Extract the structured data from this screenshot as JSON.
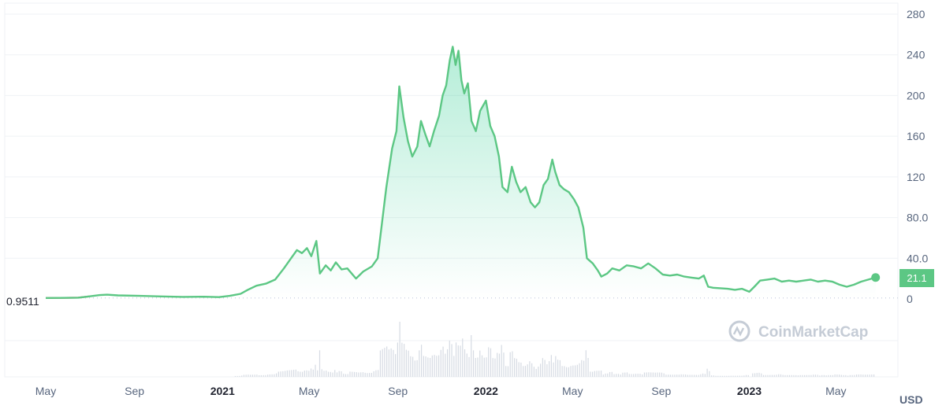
{
  "chart_data": {
    "type": "area",
    "y_ticks": [
      "280",
      "240",
      "200",
      "160",
      "120",
      "80.0",
      "40.0",
      "0"
    ],
    "ylim": [
      0,
      280
    ],
    "x_ticks": [
      {
        "label": "May",
        "bold": false,
        "day": 0
      },
      {
        "label": "Sep",
        "bold": false,
        "day": 123
      },
      {
        "label": "2021",
        "bold": true,
        "day": 245
      },
      {
        "label": "May",
        "bold": false,
        "day": 365
      },
      {
        "label": "Sep",
        "bold": false,
        "day": 488
      },
      {
        "label": "2022",
        "bold": true,
        "day": 610
      },
      {
        "label": "May",
        "bold": false,
        "day": 730
      },
      {
        "label": "Sep",
        "bold": false,
        "day": 853
      },
      {
        "label": "2023",
        "bold": true,
        "day": 975
      },
      {
        "label": "May",
        "bold": false,
        "day": 1095
      }
    ],
    "x_range_days": [
      0,
      1170
    ],
    "currency": "USD",
    "start_price_label": "0.9511",
    "current_price_label": "21.1",
    "watermark": "CoinMarketCap",
    "colors": {
      "up": "#16c784",
      "line": "#5cc784",
      "down": "#ea3943",
      "grid": "#eff2f5",
      "volume": "#d6dbe3"
    },
    "series": [
      {
        "values": [
          [
            0,
            0.95
          ],
          [
            20,
            1.0
          ],
          [
            45,
            1.2
          ],
          [
            60,
            2.5
          ],
          [
            75,
            3.8
          ],
          [
            85,
            4.2
          ],
          [
            100,
            3.5
          ],
          [
            130,
            3.0
          ],
          [
            160,
            2.5
          ],
          [
            190,
            2.0
          ],
          [
            220,
            2.2
          ],
          [
            240,
            1.8
          ],
          [
            255,
            3.0
          ],
          [
            270,
            5.0
          ],
          [
            280,
            9
          ],
          [
            292,
            13
          ],
          [
            305,
            15
          ],
          [
            318,
            19
          ],
          [
            330,
            30
          ],
          [
            340,
            40
          ],
          [
            348,
            48
          ],
          [
            355,
            45
          ],
          [
            362,
            50
          ],
          [
            368,
            42
          ],
          [
            375,
            57
          ],
          [
            380,
            25
          ],
          [
            388,
            33
          ],
          [
            395,
            28
          ],
          [
            402,
            36
          ],
          [
            410,
            29
          ],
          [
            418,
            30
          ],
          [
            430,
            20
          ],
          [
            440,
            27
          ],
          [
            452,
            32
          ],
          [
            460,
            40
          ],
          [
            466,
            75
          ],
          [
            472,
            110
          ],
          [
            480,
            148
          ],
          [
            486,
            165
          ],
          [
            490,
            209
          ],
          [
            496,
            178
          ],
          [
            502,
            155
          ],
          [
            508,
            140
          ],
          [
            515,
            150
          ],
          [
            520,
            175
          ],
          [
            526,
            162
          ],
          [
            532,
            150
          ],
          [
            538,
            165
          ],
          [
            545,
            180
          ],
          [
            550,
            200
          ],
          [
            555,
            210
          ],
          [
            560,
            235
          ],
          [
            564,
            248
          ],
          [
            568,
            230
          ],
          [
            572,
            244
          ],
          [
            576,
            215
          ],
          [
            580,
            202
          ],
          [
            585,
            212
          ],
          [
            590,
            175
          ],
          [
            596,
            165
          ],
          [
            602,
            185
          ],
          [
            610,
            195
          ],
          [
            616,
            170
          ],
          [
            622,
            160
          ],
          [
            628,
            140
          ],
          [
            633,
            110
          ],
          [
            640,
            105
          ],
          [
            646,
            130
          ],
          [
            652,
            115
          ],
          [
            658,
            105
          ],
          [
            665,
            110
          ],
          [
            672,
            95
          ],
          [
            678,
            90
          ],
          [
            684,
            95
          ],
          [
            690,
            112
          ],
          [
            696,
            118
          ],
          [
            702,
            137
          ],
          [
            706,
            125
          ],
          [
            712,
            112
          ],
          [
            718,
            108
          ],
          [
            725,
            105
          ],
          [
            732,
            98
          ],
          [
            738,
            90
          ],
          [
            745,
            70
          ],
          [
            750,
            40
          ],
          [
            758,
            35
          ],
          [
            765,
            28
          ],
          [
            770,
            22
          ],
          [
            778,
            25
          ],
          [
            785,
            30
          ],
          [
            795,
            28
          ],
          [
            805,
            33
          ],
          [
            815,
            32
          ],
          [
            825,
            30
          ],
          [
            835,
            35
          ],
          [
            845,
            30
          ],
          [
            855,
            24
          ],
          [
            865,
            23
          ],
          [
            875,
            24
          ],
          [
            885,
            22
          ],
          [
            895,
            21
          ],
          [
            905,
            20
          ],
          [
            912,
            23
          ],
          [
            918,
            12
          ],
          [
            925,
            11
          ],
          [
            935,
            10.5
          ],
          [
            945,
            10
          ],
          [
            955,
            9
          ],
          [
            965,
            10
          ],
          [
            975,
            7
          ],
          [
            982,
            12
          ],
          [
            990,
            18
          ],
          [
            1000,
            19
          ],
          [
            1010,
            20
          ],
          [
            1020,
            17
          ],
          [
            1030,
            18
          ],
          [
            1040,
            17
          ],
          [
            1050,
            18
          ],
          [
            1060,
            19
          ],
          [
            1070,
            17
          ],
          [
            1080,
            18
          ],
          [
            1090,
            17
          ],
          [
            1100,
            14
          ],
          [
            1110,
            12
          ],
          [
            1120,
            14
          ],
          [
            1130,
            17
          ],
          [
            1140,
            19
          ],
          [
            1150,
            21.1
          ]
        ]
      }
    ]
  }
}
